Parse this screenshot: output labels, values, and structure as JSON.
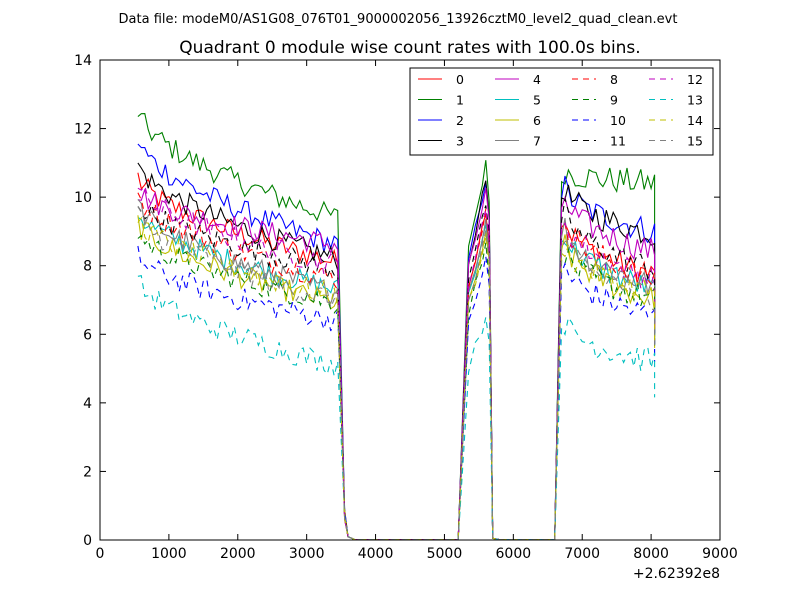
{
  "chart_data": {
    "type": "line",
    "suptitle": "Data file: modeM0/AS1G08_076T01_9000002056_13926cztM0_level2_quad_clean.evt",
    "title": "Quadrant 0 module wise count rates with 100.0s bins.",
    "xlabel": "",
    "ylabel": "",
    "xlim": [
      0,
      9000
    ],
    "ylim": [
      0,
      14
    ],
    "x_ticks": [
      0,
      1000,
      2000,
      3000,
      4000,
      5000,
      6000,
      7000,
      8000,
      9000
    ],
    "y_ticks": [
      0,
      2,
      4,
      6,
      8,
      10,
      12,
      14
    ],
    "x_offset_label": "+2.62392e8",
    "grid": false,
    "legend": {
      "position": "top-right",
      "columns": 4
    },
    "segments": [
      {
        "x_start": 550,
        "x_end": 3450
      },
      {
        "x_end": 5250
      },
      {
        "x_start": 5350,
        "x_end": 5650
      },
      {
        "x_end": 6650
      },
      {
        "x_start": 6750,
        "x_end": 8050
      }
    ],
    "series": [
      {
        "name": "0",
        "color": "#ff0000",
        "dash": "solid",
        "levels": [
          10.6,
          8.1,
          9.6,
          7.7
        ]
      },
      {
        "name": "1",
        "color": "#008000",
        "dash": "solid",
        "levels": [
          12.5,
          9.4,
          11.0,
          10.4
        ]
      },
      {
        "name": "2",
        "color": "#0000ff",
        "dash": "solid",
        "levels": [
          11.7,
          8.6,
          10.5,
          9.0
        ]
      },
      {
        "name": "3",
        "color": "#000000",
        "dash": "solid",
        "levels": [
          11.0,
          8.2,
          10.5,
          8.9
        ]
      },
      {
        "name": "4",
        "color": "#bf00bf",
        "dash": "solid",
        "levels": [
          10.2,
          8.6,
          10.2,
          8.4
        ]
      },
      {
        "name": "5",
        "color": "#00bfbf",
        "dash": "solid",
        "levels": [
          9.6,
          7.3,
          9.2,
          7.3
        ]
      },
      {
        "name": "6",
        "color": "#bfbf00",
        "dash": "solid",
        "levels": [
          9.3,
          6.9,
          8.9,
          7.0
        ]
      },
      {
        "name": "7",
        "color": "#808080",
        "dash": "solid",
        "levels": [
          9.8,
          7.2,
          9.3,
          7.4
        ]
      },
      {
        "name": "8",
        "color": "#ff0000",
        "dash": "dashed",
        "levels": [
          10.1,
          7.6,
          9.6,
          7.6
        ]
      },
      {
        "name": "9",
        "color": "#008000",
        "dash": "dashed",
        "levels": [
          9.0,
          6.9,
          8.6,
          7.0
        ]
      },
      {
        "name": "10",
        "color": "#0000ff",
        "dash": "dashed",
        "levels": [
          8.3,
          6.4,
          8.2,
          6.5
        ]
      },
      {
        "name": "11",
        "color": "#000000",
        "dash": "dashed",
        "levels": [
          9.9,
          7.9,
          9.8,
          7.9
        ]
      },
      {
        "name": "12",
        "color": "#bf00bf",
        "dash": "dashed",
        "levels": [
          10.3,
          8.0,
          9.6,
          7.6
        ]
      },
      {
        "name": "13",
        "color": "#00bfbf",
        "dash": "dashed",
        "levels": [
          7.6,
          5.1,
          6.5,
          5.2
        ]
      },
      {
        "name": "14",
        "color": "#bfbf00",
        "dash": "dashed",
        "levels": [
          9.4,
          7.1,
          8.8,
          7.2
        ]
      },
      {
        "name": "15",
        "color": "#808080",
        "dash": "dashed",
        "levels": [
          9.5,
          7.0,
          9.0,
          7.1
        ]
      }
    ]
  }
}
